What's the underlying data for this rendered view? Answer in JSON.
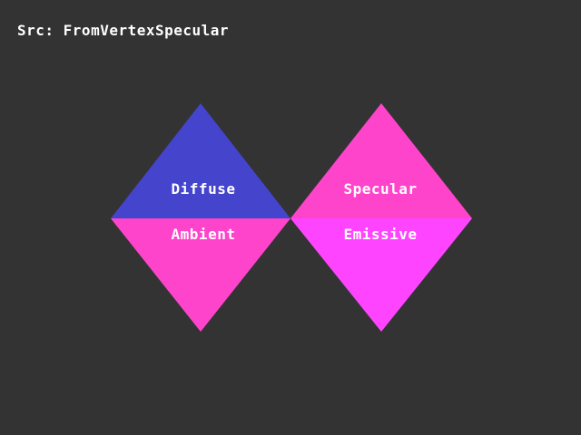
{
  "header": {
    "source_label": "Src: FromVertexSpecular"
  },
  "colors": {
    "background": "#333333",
    "diffuse": "#4444cc",
    "ambient": "#ff44cc",
    "specular": "#ff44cc",
    "emissive": "#ff44ff",
    "text": "#ffffff"
  },
  "quadrants": {
    "diffuse": {
      "label": "Diffuse"
    },
    "ambient": {
      "label": "Ambient"
    },
    "specular": {
      "label": "Specular"
    },
    "emissive": {
      "label": "Emissive"
    }
  }
}
